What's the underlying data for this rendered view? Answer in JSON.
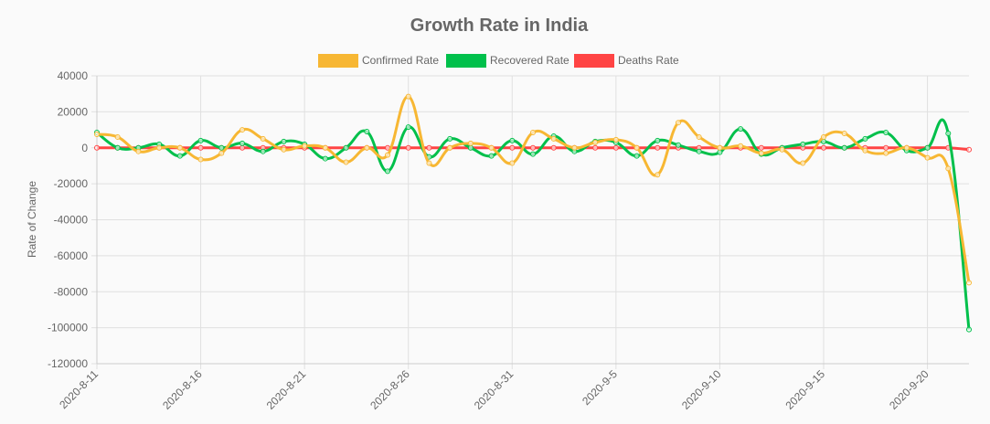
{
  "chart_data": {
    "type": "line",
    "title": "Growth Rate in India",
    "xlabel": "",
    "ylabel": "Rate of Change",
    "ylim": [
      -120000,
      40000
    ],
    "yticks": [
      40000,
      20000,
      0,
      -20000,
      -40000,
      -60000,
      -80000,
      -100000,
      -120000
    ],
    "xticks": [
      "2020-8-11",
      "2020-8-16",
      "2020-8-21",
      "2020-8-26",
      "2020-8-31",
      "2020-9-5",
      "2020-9-10",
      "2020-9-15",
      "2020-9-20"
    ],
    "grid": true,
    "legend_position": "top",
    "categories": [
      "2020-8-11",
      "2020-8-12",
      "2020-8-13",
      "2020-8-14",
      "2020-8-15",
      "2020-8-16",
      "2020-8-17",
      "2020-8-18",
      "2020-8-19",
      "2020-8-20",
      "2020-8-21",
      "2020-8-22",
      "2020-8-23",
      "2020-8-24",
      "2020-8-25",
      "2020-8-26",
      "2020-8-27",
      "2020-8-28",
      "2020-8-29",
      "2020-8-30",
      "2020-8-31",
      "2020-9-1",
      "2020-9-2",
      "2020-9-3",
      "2020-9-4",
      "2020-9-5",
      "2020-9-6",
      "2020-9-7",
      "2020-9-8",
      "2020-9-9",
      "2020-9-10",
      "2020-9-11",
      "2020-9-12",
      "2020-9-13",
      "2020-9-14",
      "2020-9-15",
      "2020-9-16",
      "2020-9-17",
      "2020-9-18",
      "2020-9-19",
      "2020-9-20",
      "2020-9-21",
      "2020-9-22"
    ],
    "series": [
      {
        "name": "Confirmed Rate",
        "color": "#f7b733",
        "values": [
          7500,
          6000,
          -2000,
          0,
          0,
          -6500,
          -3000,
          10000,
          5000,
          -1000,
          1000,
          0,
          -8000,
          0,
          -4000,
          28500,
          -8500,
          0,
          2500,
          0,
          -8500,
          8500,
          5000,
          0,
          3000,
          4500,
          0,
          -15000,
          14000,
          6000,
          0,
          1000,
          -3000,
          -1000,
          -8500,
          6000,
          8000,
          -1500,
          -3000,
          0,
          -5500,
          -11500,
          -75000
        ]
      },
      {
        "name": "Recovered Rate",
        "color": "#00c04b",
        "values": [
          8500,
          0,
          0,
          2000,
          -4500,
          4000,
          0,
          2500,
          -2000,
          3500,
          2000,
          -6000,
          0,
          9000,
          -13000,
          11500,
          -5000,
          5000,
          0,
          -4500,
          4000,
          -3500,
          6500,
          -2000,
          3500,
          3000,
          -4500,
          4000,
          1500,
          -2000,
          -2500,
          10500,
          -3500,
          0,
          2000,
          3500,
          0,
          5000,
          8500,
          -1500,
          0,
          8000,
          -101000
        ]
      },
      {
        "name": "Deaths Rate",
        "color": "#ff4444",
        "values": [
          0,
          0,
          0,
          0,
          0,
          0,
          0,
          0,
          0,
          0,
          0,
          0,
          0,
          0,
          0,
          0,
          0,
          0,
          0,
          0,
          0,
          0,
          0,
          0,
          0,
          0,
          0,
          0,
          0,
          0,
          0,
          0,
          0,
          0,
          0,
          0,
          0,
          0,
          0,
          0,
          0,
          0,
          -1000
        ]
      }
    ]
  }
}
